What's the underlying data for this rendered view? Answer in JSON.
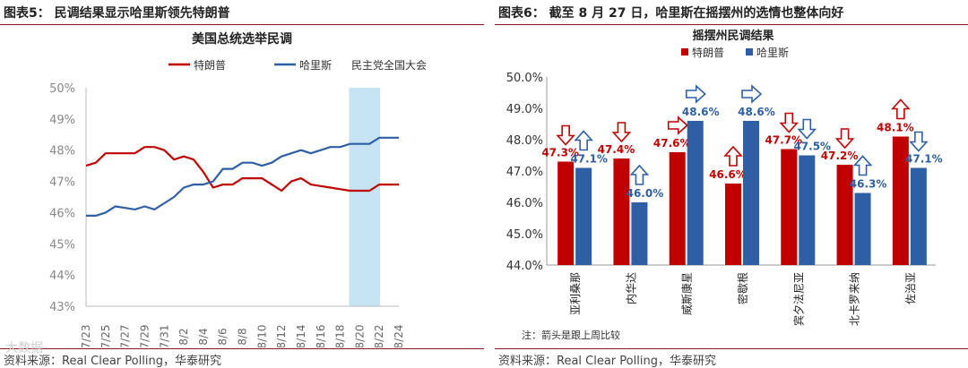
{
  "left_panel": {
    "figure_title": "图表5：  民调结果显示哈里斯领先特朗普",
    "source": "资料来源：Real Clear Polling，华泰研究",
    "watermark": "大数据"
  },
  "right_panel": {
    "figure_title": "图表6：  截至 8 月 27 日，哈里斯在摇摆州的选情也整体向好",
    "source": "资料来源：Real Clear Polling，华泰研究"
  },
  "colors": {
    "trump": "#c00000",
    "harris": "#2e5fa5",
    "dnc_band": "#c5e3f3",
    "accent": "#8b1a1a"
  },
  "chart_data": [
    {
      "type": "line",
      "title": "美国总统选举民调",
      "x": [
        "7/23",
        "7/24",
        "7/25",
        "7/26",
        "7/27",
        "7/28",
        "7/29",
        "7/30",
        "7/31",
        "8/1",
        "8/2",
        "8/3",
        "8/4",
        "8/5",
        "8/6",
        "8/7",
        "8/8",
        "8/9",
        "8/10",
        "8/11",
        "8/12",
        "8/13",
        "8/14",
        "8/15",
        "8/16",
        "8/17",
        "8/18",
        "8/19",
        "8/20",
        "8/21",
        "8/22",
        "8/23",
        "8/24"
      ],
      "x_tick_labels": [
        "7/23",
        "7/25",
        "7/27",
        "7/29",
        "7/31",
        "8/2",
        "8/4",
        "8/6",
        "8/8",
        "8/10",
        "8/12",
        "8/14",
        "8/16",
        "8/18",
        "8/20",
        "8/22",
        "8/24"
      ],
      "series": [
        {
          "name": "特朗普",
          "color": "#c00000",
          "values": [
            47.5,
            47.6,
            47.9,
            47.9,
            47.9,
            47.9,
            48.1,
            48.1,
            48.0,
            47.7,
            47.8,
            47.7,
            47.3,
            46.8,
            46.9,
            46.9,
            47.1,
            47.1,
            47.1,
            46.9,
            46.7,
            47.0,
            47.1,
            46.9,
            46.85,
            46.8,
            46.75,
            46.7,
            46.7,
            46.7,
            46.9,
            46.9,
            46.9
          ]
        },
        {
          "name": "哈里斯",
          "color": "#2e5fa5",
          "values": [
            45.9,
            45.9,
            46.0,
            46.2,
            46.15,
            46.1,
            46.2,
            46.1,
            46.3,
            46.5,
            46.8,
            46.9,
            46.9,
            47.0,
            47.4,
            47.4,
            47.6,
            47.6,
            47.5,
            47.6,
            47.8,
            47.9,
            48.0,
            47.9,
            48.0,
            48.1,
            48.1,
            48.2,
            48.2,
            48.2,
            48.4,
            48.4,
            48.4
          ]
        }
      ],
      "shaded_region": {
        "label": "民主党全国大会",
        "from": "8/19",
        "to": "8/22",
        "color": "#c5e3f3"
      },
      "ylim": [
        43,
        50
      ],
      "y_ticks": [
        "43%",
        "44%",
        "45%",
        "46%",
        "47%",
        "48%",
        "49%",
        "50%"
      ],
      "legend_position": "top",
      "grid": false
    },
    {
      "type": "bar",
      "title": "摇摆州民调结果",
      "categories": [
        "亚利桑那",
        "内华达",
        "威斯康星",
        "密歇根",
        "宾夕法尼亚",
        "北卡罗来纳",
        "佐治亚"
      ],
      "series": [
        {
          "name": "特朗普",
          "color": "#c00000",
          "values": [
            47.3,
            47.4,
            47.6,
            46.6,
            47.7,
            47.2,
            48.1
          ],
          "labels": [
            "47.3%",
            "47.4%",
            "47.6%",
            "46.6%",
            "47.7%",
            "47.2%",
            "48.1%"
          ]
        },
        {
          "name": "哈里斯",
          "color": "#2e5fa5",
          "values": [
            47.1,
            46.0,
            48.6,
            48.6,
            47.5,
            46.3,
            47.1
          ],
          "labels": [
            "47.1%",
            "46.0%",
            "48.6%",
            "48.6%",
            "47.5%",
            "46.3%",
            "47.1%"
          ]
        }
      ],
      "trend_arrows": [
        [
          "down",
          "up"
        ],
        [
          "down",
          "up"
        ],
        [
          "right",
          "right"
        ],
        [
          "up",
          "right"
        ],
        [
          "down",
          "down"
        ],
        [
          "down",
          "up"
        ],
        [
          "up",
          "down"
        ]
      ],
      "ylim": [
        44,
        50
      ],
      "y_ticks": [
        "44.0%",
        "45.0%",
        "46.0%",
        "47.0%",
        "48.0%",
        "49.0%",
        "50.0%"
      ],
      "legend_position": "top",
      "grid": false,
      "note": "注：箭头是跟上周比较"
    }
  ]
}
